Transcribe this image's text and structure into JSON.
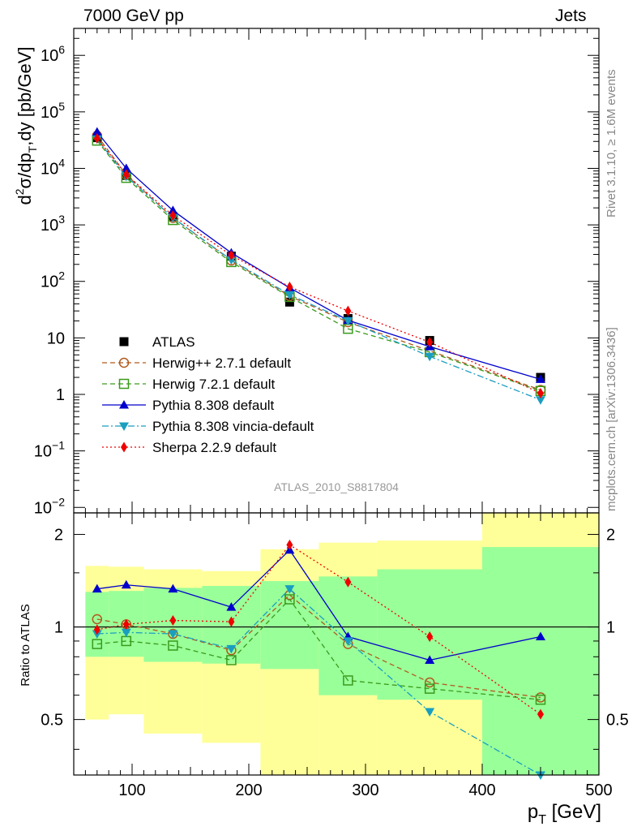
{
  "header": {
    "left": "7000 GeV pp",
    "right": "Jets"
  },
  "side_labels": {
    "rivet": "Rivet 3.1.10, ≥ 1.6M events",
    "mcplots": "mcplots.cern.ch [arXiv:1306.3436]"
  },
  "analysis_id": "ATLAS_2010_S8817804",
  "chart_data": [
    {
      "type": "line",
      "panel": "main",
      "ylabel_parts": [
        "d",
        "2",
        "σ/dp",
        "T",
        ",dy [pb/GeV]"
      ],
      "yscale": "log",
      "ylim": [
        0.008,
        3000000
      ],
      "xlim": [
        50,
        500
      ],
      "yticks": [
        {
          "v": 0.01,
          "base": "10",
          "exp": "−2"
        },
        {
          "v": 0.1,
          "base": "10",
          "exp": "−1"
        },
        {
          "v": 1,
          "base": "1",
          "exp": ""
        },
        {
          "v": 10,
          "base": "10",
          "exp": ""
        },
        {
          "v": 100,
          "base": "10",
          "exp": "2"
        },
        {
          "v": 1000,
          "base": "10",
          "exp": "3"
        },
        {
          "v": 10000,
          "base": "10",
          "exp": "4"
        },
        {
          "v": 100000,
          "base": "10",
          "exp": "5"
        },
        {
          "v": 1000000,
          "base": "10",
          "exp": "6"
        }
      ],
      "x": [
        70,
        95,
        135,
        185,
        235,
        285,
        355,
        450
      ],
      "series": [
        {
          "name": "ATLAS",
          "color": "#000000",
          "marker": "square-filled",
          "dash": "none",
          "values": [
            35000,
            7500,
            1400,
            280,
            43,
            22,
            9,
            2
          ]
        },
        {
          "name": "Herwig++ 2.7.1 default",
          "color": "#b05a1e",
          "marker": "circle-open",
          "dash": "6,4",
          "values": [
            38000,
            7700,
            1330,
            235,
            55,
            19,
            5.9,
            1.2
          ]
        },
        {
          "name": "Herwig 7.2.1 default",
          "color": "#3a9a1c",
          "marker": "square-open",
          "dash": "6,4",
          "values": [
            31000,
            6800,
            1220,
            220,
            53,
            14.5,
            5.6,
            1.15
          ]
        },
        {
          "name": "Pythia 8.308 default",
          "color": "#0000cc",
          "marker": "triangle-up",
          "dash": "none",
          "values": [
            44000,
            10000,
            1800,
            320,
            77,
            20.5,
            7.0,
            1.85
          ]
        },
        {
          "name": "Pythia 8.308 vincia-default",
          "color": "#1a9ec0",
          "marker": "triangle-down",
          "dash": "8,3,2,3",
          "values": [
            33000,
            7200,
            1340,
            240,
            58,
            20,
            4.7,
            0.8
          ]
        },
        {
          "name": "Sherpa 2.2.9 default",
          "color": "#ee0000",
          "marker": "diamond",
          "dash": "2,3",
          "values": [
            34000,
            7800,
            1460,
            290,
            80,
            30,
            8.4,
            1.05
          ]
        }
      ]
    },
    {
      "type": "line",
      "panel": "ratio",
      "ylabel": "Ratio to ATLAS",
      "xlabel": "p_T [GeV]",
      "xlabel_parts": [
        "p",
        "T",
        " [GeV]"
      ],
      "ylim": [
        0.33,
        2.35
      ],
      "xlim": [
        50,
        500
      ],
      "yticks": [
        0.5,
        1,
        2
      ],
      "xticks": [
        100,
        200,
        300,
        400,
        500
      ],
      "x": [
        70,
        95,
        135,
        185,
        235,
        285,
        355,
        450
      ],
      "bins": [
        [
          60,
          80
        ],
        [
          80,
          110
        ],
        [
          110,
          160
        ],
        [
          160,
          210
        ],
        [
          210,
          260
        ],
        [
          260,
          310
        ],
        [
          310,
          400
        ],
        [
          400,
          500
        ]
      ],
      "bands": {
        "yellow": [
          [
            0.5,
            1.58
          ],
          [
            0.52,
            1.57
          ],
          [
            0.45,
            1.54
          ],
          [
            0.42,
            1.52
          ],
          [
            0.3,
            1.79
          ],
          [
            0.3,
            1.88
          ],
          [
            0.3,
            1.91
          ],
          [
            0.3,
            2.4
          ]
        ],
        "green": [
          [
            0.8,
            1.3
          ],
          [
            0.8,
            1.31
          ],
          [
            0.77,
            1.34
          ],
          [
            0.76,
            1.36
          ],
          [
            0.73,
            1.41
          ],
          [
            0.6,
            1.46
          ],
          [
            0.58,
            1.54
          ],
          [
            0.3,
            1.82
          ]
        ]
      },
      "series": [
        {
          "name": "Herwig++ 2.7.1 default",
          "values": [
            1.06,
            1.02,
            0.95,
            0.84,
            1.27,
            0.88,
            0.66,
            0.59
          ]
        },
        {
          "name": "Herwig 7.2.1 default",
          "values": [
            0.88,
            0.9,
            0.87,
            0.78,
            1.23,
            0.67,
            0.63,
            0.58
          ]
        },
        {
          "name": "Pythia 8.308 default",
          "values": [
            1.33,
            1.37,
            1.33,
            1.16,
            1.78,
            0.93,
            0.78,
            0.93
          ]
        },
        {
          "name": "Pythia 8.308 vincia-default",
          "values": [
            0.95,
            0.96,
            0.95,
            0.85,
            1.33,
            0.9,
            0.53,
            0.33
          ]
        },
        {
          "name": "Sherpa 2.2.9 default",
          "values": [
            0.98,
            1.02,
            1.05,
            1.04,
            1.85,
            1.4,
            0.93,
            0.52
          ]
        }
      ]
    }
  ]
}
